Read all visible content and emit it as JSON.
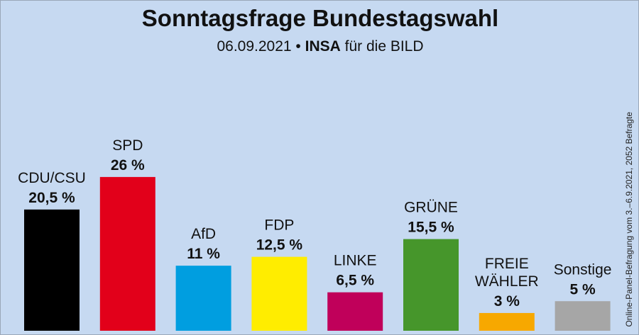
{
  "header": {
    "title": "Sonntagsfrage Bundestagswahl",
    "date": "06.09.2021 •",
    "institute": "INSA",
    "client": "für die BILD"
  },
  "source_note": "Online-Panel-Befragung vom 3.–6.9.2021, 2052 Befragte",
  "chart_data": {
    "type": "bar",
    "title": "Sonntagsfrage Bundestagswahl",
    "categories": [
      "CDU/CSU",
      "SPD",
      "AfD",
      "FDP",
      "LINKE",
      "GRÜNE",
      "FREIE WÄHLER",
      "Sonstige"
    ],
    "value_labels": [
      "20,5 %",
      "26 %",
      "11 %",
      "12,5 %",
      "6,5 %",
      "15,5 %",
      "3 %",
      "5 %"
    ],
    "values": [
      20.5,
      26,
      11,
      12.5,
      6.5,
      15.5,
      3,
      5
    ],
    "colors": [
      "#000000",
      "#e2001a",
      "#009ee0",
      "#ffed00",
      "#c0005a",
      "#46962b",
      "#f7a800",
      "#a6a6a6"
    ],
    "ylim": [
      0,
      26
    ],
    "grid": false,
    "legend": "none"
  }
}
